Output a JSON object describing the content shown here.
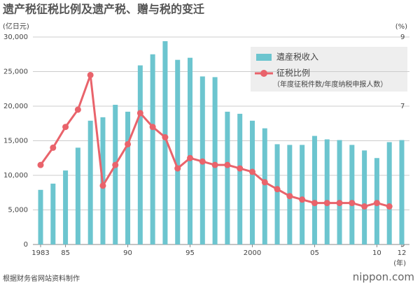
{
  "chart_data": {
    "type": "bar_line",
    "title": "遗产税征税比例及遗产税、赠与税的变迁",
    "y_axis_label": "(亿日元)",
    "y2_axis_label": "(%)",
    "x_axis_label": "(年)",
    "source": "根据财务省网站资料制作",
    "logo": "nippon.com",
    "categories": [
      "1983",
      null,
      "85",
      null,
      null,
      null,
      null,
      "90",
      null,
      null,
      null,
      null,
      "95",
      null,
      null,
      null,
      null,
      "2000",
      null,
      null,
      null,
      null,
      "05",
      null,
      null,
      null,
      null,
      "10",
      null,
      "12"
    ],
    "series": [
      {
        "name": "遺産税收入",
        "type": "bar",
        "color": "#6cc5cf",
        "values": [
          7900,
          8800,
          10700,
          14000,
          17900,
          18400,
          20200,
          19200,
          25900,
          27500,
          29400,
          26700,
          27000,
          24300,
          24200,
          19200,
          18900,
          17900,
          16800,
          14500,
          14400,
          14400,
          15700,
          15200,
          15100,
          14400,
          13600,
          12500,
          14800,
          15100
        ]
      },
      {
        "name": "征税比例",
        "type": "line",
        "axis": "y2",
        "color": "#e9636b",
        "note": "（年度征税件数/年度纳税申报人数）",
        "values": [
          5.3,
          5.8,
          6.4,
          6.9,
          7.9,
          4.7,
          5.3,
          5.9,
          6.8,
          6.4,
          6.1,
          5.2,
          5.5,
          5.4,
          5.3,
          5.3,
          5.2,
          5.1,
          4.8,
          4.6,
          4.4,
          4.3,
          4.2,
          4.2,
          4.2,
          4.2,
          4.1,
          4.2,
          4.1,
          null
        ]
      }
    ],
    "ylim": [
      0,
      30000
    ],
    "yticks": [
      0,
      {
        "value": 5000,
        "label": "5,000"
      },
      {
        "value": 10000,
        "label": "10,000"
      },
      {
        "value": 15000,
        "label": "15,000"
      },
      {
        "value": 20000,
        "label": "20,000"
      },
      {
        "value": 25000,
        "label": "25,000"
      },
      {
        "value": 30000,
        "label": "30,000"
      }
    ],
    "y2lim": [
      3,
      9
    ],
    "y2ticks": [
      3,
      5,
      7,
      9
    ],
    "grid": true,
    "legend": "top-right"
  }
}
